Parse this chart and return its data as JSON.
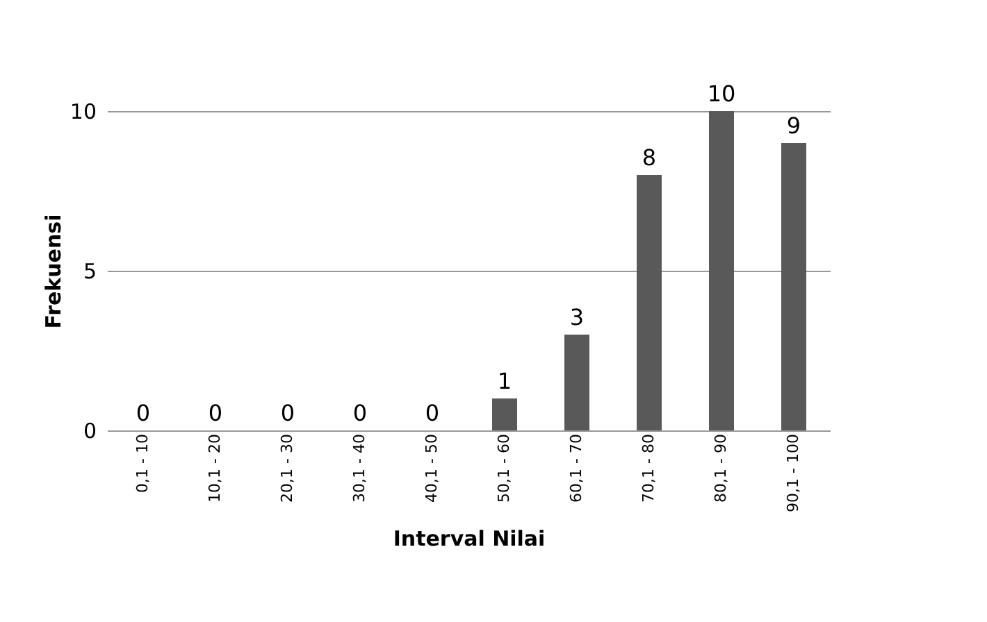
{
  "chart_data": {
    "type": "bar",
    "categories": [
      "0,1 - 10",
      "10,1 - 20",
      "20,1 - 30",
      "30,1 - 40",
      "40,1 - 50",
      "50,1 - 60",
      "60,1 - 70",
      "70,1 - 80",
      "80,1 - 90",
      "90,1 - 100"
    ],
    "values": [
      0,
      0,
      0,
      0,
      0,
      1,
      3,
      8,
      10,
      9
    ],
    "color": "#595959",
    "xlabel": "Interval Nilai",
    "ylabel": "Frekuensi",
    "ylim": [
      0,
      10
    ],
    "yticks": [
      0,
      5,
      10
    ],
    "grid": "y",
    "data_labels": true
  }
}
